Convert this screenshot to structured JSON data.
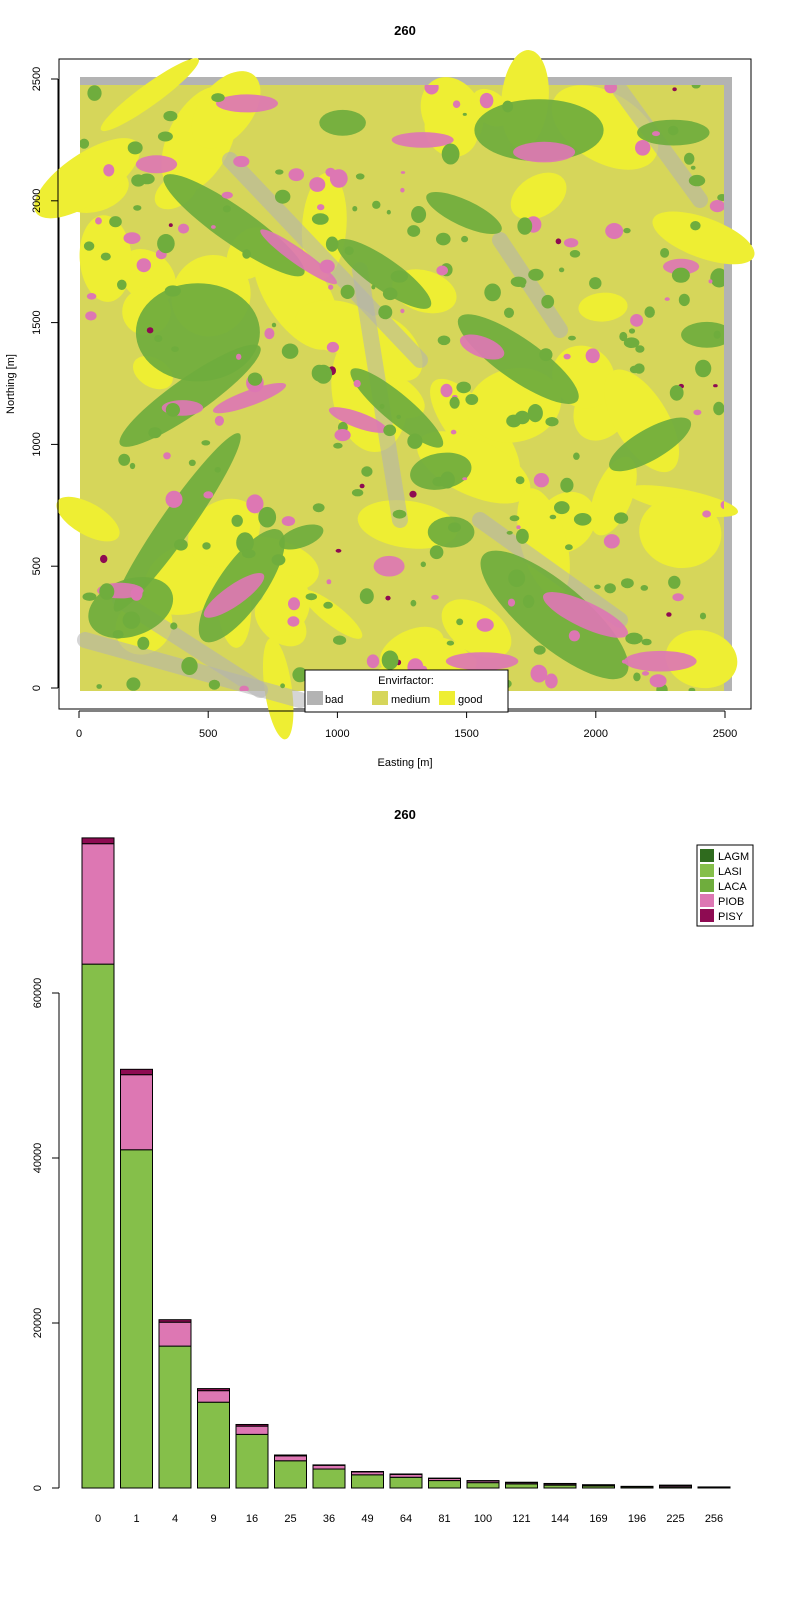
{
  "colors": {
    "bad": "#b3b3b3",
    "medium": "#d6d65a",
    "good": "#eeee33",
    "LAGM": "#2f6b1e",
    "LASI": "#85bf4a",
    "LACA": "#6fad3d",
    "PIOB": "#dd77b3",
    "PISY": "#8e0b52"
  },
  "chart_data": [
    {
      "type": "heatmap",
      "title": "260",
      "xlabel": "Easting [m]",
      "ylabel": "Northing [m]",
      "xlim": [
        0,
        2500
      ],
      "ylim": [
        0,
        2500
      ],
      "xticks": [
        "0",
        "500",
        "1000",
        "1500",
        "2000",
        "2500"
      ],
      "yticks": [
        "0",
        "500",
        "1000",
        "1500",
        "2000",
        "2500"
      ],
      "legend": {
        "title": "Envirfactor:",
        "placement": "bottom-center",
        "items": [
          {
            "label": "bad",
            "color": "#b3b3b3"
          },
          {
            "label": "medium",
            "color": "#d6d65a"
          },
          {
            "label": "good",
            "color": "#eeee33"
          }
        ]
      },
      "tree_patches": [
        {
          "species": "LACA",
          "x": 460,
          "y": 1460,
          "rx": 240,
          "ry": 190,
          "rot": 0
        },
        {
          "species": "LACA",
          "x": 430,
          "y": 1200,
          "rx": 330,
          "ry": 70,
          "rot": 35
        },
        {
          "species": "LACA",
          "x": 380,
          "y": 680,
          "rx": 420,
          "ry": 60,
          "rot": 55
        },
        {
          "species": "LACA",
          "x": 200,
          "y": 330,
          "rx": 170,
          "ry": 110,
          "rot": 20
        },
        {
          "species": "LACA",
          "x": 630,
          "y": 420,
          "rx": 260,
          "ry": 90,
          "rot": 55
        },
        {
          "species": "LACA",
          "x": 600,
          "y": 1900,
          "rx": 330,
          "ry": 70,
          "rot": -35
        },
        {
          "species": "LACA",
          "x": 1180,
          "y": 1700,
          "rx": 220,
          "ry": 60,
          "rot": -35
        },
        {
          "species": "LACA",
          "x": 1230,
          "y": 1150,
          "rx": 230,
          "ry": 55,
          "rot": -40
        },
        {
          "species": "LACA",
          "x": 1700,
          "y": 1350,
          "rx": 280,
          "ry": 80,
          "rot": -35
        },
        {
          "species": "LACA",
          "x": 1840,
          "y": 300,
          "rx": 360,
          "ry": 120,
          "rot": -40
        },
        {
          "species": "LACA",
          "x": 1780,
          "y": 2290,
          "rx": 250,
          "ry": 120,
          "rot": 0
        },
        {
          "species": "LACA",
          "x": 1400,
          "y": 890,
          "rx": 120,
          "ry": 70,
          "rot": 10
        },
        {
          "species": "LACA",
          "x": 1440,
          "y": 640,
          "rx": 90,
          "ry": 60,
          "rot": 0
        },
        {
          "species": "LACA",
          "x": 2210,
          "y": 1000,
          "rx": 180,
          "ry": 60,
          "rot": 30
        },
        {
          "species": "LACA",
          "x": 2300,
          "y": 2280,
          "rx": 140,
          "ry": 50,
          "rot": 0
        },
        {
          "species": "LACA",
          "x": 1020,
          "y": 2320,
          "rx": 90,
          "ry": 50,
          "rot": 0
        },
        {
          "species": "LACA",
          "x": 1490,
          "y": 1950,
          "rx": 160,
          "ry": 50,
          "rot": -25
        },
        {
          "species": "LACA",
          "x": 2430,
          "y": 1450,
          "rx": 100,
          "ry": 50,
          "rot": 0
        },
        {
          "species": "LACA",
          "x": 860,
          "y": 620,
          "rx": 90,
          "ry": 40,
          "rot": 20
        },
        {
          "species": "PIOB",
          "x": 850,
          "y": 1770,
          "rx": 180,
          "ry": 30,
          "rot": -35
        },
        {
          "species": "PIOB",
          "x": 1560,
          "y": 1400,
          "rx": 90,
          "ry": 40,
          "rot": -20
        },
        {
          "species": "PIOB",
          "x": 660,
          "y": 1190,
          "rx": 150,
          "ry": 30,
          "rot": 20
        },
        {
          "species": "PIOB",
          "x": 1080,
          "y": 1100,
          "rx": 120,
          "ry": 30,
          "rot": -20
        },
        {
          "species": "PIOB",
          "x": 1960,
          "y": 300,
          "rx": 180,
          "ry": 50,
          "rot": -25
        },
        {
          "species": "PIOB",
          "x": 600,
          "y": 380,
          "rx": 140,
          "ry": 40,
          "rot": 35
        },
        {
          "species": "PIOB",
          "x": 650,
          "y": 2400,
          "rx": 120,
          "ry": 35,
          "rot": 0
        },
        {
          "species": "PIOB",
          "x": 1800,
          "y": 2200,
          "rx": 120,
          "ry": 40,
          "rot": 0
        },
        {
          "species": "PIOB",
          "x": 300,
          "y": 2150,
          "rx": 80,
          "ry": 35,
          "rot": 0
        },
        {
          "species": "PIOB",
          "x": 1330,
          "y": 2250,
          "rx": 120,
          "ry": 30,
          "rot": 0
        },
        {
          "species": "PIOB",
          "x": 160,
          "y": 400,
          "rx": 90,
          "ry": 30,
          "rot": 0
        },
        {
          "species": "PIOB",
          "x": 1560,
          "y": 110,
          "rx": 140,
          "ry": 35,
          "rot": 0
        },
        {
          "species": "PIOB",
          "x": 1200,
          "y": 500,
          "rx": 60,
          "ry": 40,
          "rot": 0
        },
        {
          "species": "PIOB",
          "x": 2250,
          "y": 110,
          "rx": 140,
          "ry": 40,
          "rot": 0
        },
        {
          "species": "PIOB",
          "x": 400,
          "y": 1150,
          "rx": 80,
          "ry": 30,
          "rot": 0
        },
        {
          "species": "PIOB",
          "x": 2330,
          "y": 1730,
          "rx": 70,
          "ry": 30,
          "rot": 0
        }
      ]
    },
    {
      "type": "bar",
      "stacked": true,
      "title": "260",
      "categories": [
        "0",
        "1",
        "4",
        "9",
        "16",
        "25",
        "36",
        "49",
        "64",
        "81",
        "100",
        "121",
        "144",
        "169",
        "196",
        "225",
        "256"
      ],
      "ylim": [
        0,
        80000
      ],
      "yticks": [
        "0",
        "20000",
        "40000",
        "60000"
      ],
      "legend": {
        "placement": "top-right"
      },
      "series": [
        {
          "name": "LAGM",
          "color": "#2f6b1e",
          "values": [
            0,
            0,
            0,
            0,
            0,
            0,
            0,
            0,
            0,
            0,
            0,
            0,
            0,
            0,
            0,
            0,
            0
          ]
        },
        {
          "name": "LASI",
          "color": "#85bf4a",
          "values": [
            63500,
            41000,
            17200,
            10400,
            6500,
            3300,
            2300,
            1600,
            1300,
            900,
            650,
            500,
            350,
            250,
            150,
            150,
            100
          ]
        },
        {
          "name": "LACA",
          "color": "#6fad3d",
          "values": [
            0,
            0,
            0,
            0,
            0,
            0,
            0,
            0,
            0,
            0,
            0,
            0,
            0,
            0,
            0,
            0,
            0
          ]
        },
        {
          "name": "PIOB",
          "color": "#dd77b3",
          "values": [
            14600,
            9100,
            2900,
            1400,
            1000,
            600,
            450,
            350,
            350,
            250,
            200,
            150,
            150,
            100,
            0,
            150,
            0
          ]
        },
        {
          "name": "PISY",
          "color": "#8e0b52",
          "values": [
            700,
            650,
            300,
            250,
            200,
            100,
            50,
            50,
            50,
            50,
            50,
            50,
            50,
            50,
            50,
            50,
            30
          ]
        }
      ]
    }
  ]
}
